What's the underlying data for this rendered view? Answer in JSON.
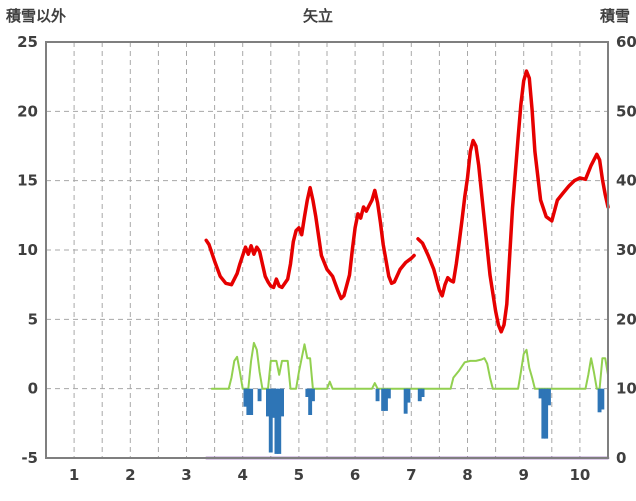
{
  "chart_data": {
    "type": "line",
    "title": "矢立",
    "left_axis_label": "積雪以外",
    "right_axis_label": "積雪",
    "xlabel": "",
    "xlim": [
      0.5,
      10.5
    ],
    "ylim_left": [
      -5,
      25
    ],
    "ylim_right": [
      0,
      60
    ],
    "x_ticks": [
      1,
      2,
      3,
      4,
      5,
      6,
      7,
      8,
      9,
      10
    ],
    "y_ticks_left": [
      25,
      20,
      15,
      10,
      5,
      0,
      -5
    ],
    "y_ticks_right": [
      60,
      50,
      40,
      30,
      20,
      10,
      0
    ],
    "grid": {
      "on": true,
      "x_step": 0.5,
      "y_step_left": 5,
      "line_style": "dashed",
      "color": "#a8a8a8"
    },
    "border_color": "#7f7f7f",
    "text_color": "#3f3f3f",
    "legend_position": "none",
    "series": [
      {
        "name": "series-red-thick-line",
        "type": "line",
        "axis": "left",
        "color": "#e60000",
        "width": 3.5,
        "points": [
          [
            3.35,
            10.7
          ],
          [
            3.4,
            10.4
          ],
          [
            3.5,
            9.2
          ],
          [
            3.6,
            8.1
          ],
          [
            3.7,
            7.6
          ],
          [
            3.8,
            7.5
          ],
          [
            3.9,
            8.3
          ],
          [
            3.95,
            9.0
          ],
          [
            4.0,
            9.6
          ],
          [
            4.05,
            10.2
          ],
          [
            4.1,
            9.7
          ],
          [
            4.15,
            10.3
          ],
          [
            4.2,
            9.7
          ],
          [
            4.25,
            10.2
          ],
          [
            4.3,
            9.9
          ],
          [
            4.35,
            9.0
          ],
          [
            4.4,
            8.1
          ],
          [
            4.45,
            7.7
          ],
          [
            4.5,
            7.4
          ],
          [
            4.55,
            7.3
          ],
          [
            4.6,
            7.9
          ],
          [
            4.65,
            7.4
          ],
          [
            4.7,
            7.3
          ],
          [
            4.8,
            7.9
          ],
          [
            4.85,
            9.0
          ],
          [
            4.9,
            10.6
          ],
          [
            4.95,
            11.4
          ],
          [
            5.0,
            11.6
          ],
          [
            5.05,
            11.1
          ],
          [
            5.1,
            12.4
          ],
          [
            5.15,
            13.6
          ],
          [
            5.2,
            14.5
          ],
          [
            5.25,
            13.6
          ],
          [
            5.3,
            12.4
          ],
          [
            5.35,
            11.0
          ],
          [
            5.4,
            9.6
          ],
          [
            5.5,
            8.6
          ],
          [
            5.6,
            8.1
          ],
          [
            5.7,
            7.0
          ],
          [
            5.75,
            6.5
          ],
          [
            5.8,
            6.7
          ],
          [
            5.9,
            8.2
          ],
          [
            5.95,
            10.0
          ],
          [
            6.0,
            11.6
          ],
          [
            6.05,
            12.6
          ],
          [
            6.1,
            12.3
          ],
          [
            6.15,
            13.1
          ],
          [
            6.2,
            12.8
          ],
          [
            6.25,
            13.2
          ],
          [
            6.3,
            13.6
          ],
          [
            6.35,
            14.3
          ],
          [
            6.4,
            13.4
          ],
          [
            6.45,
            12.0
          ],
          [
            6.5,
            10.4
          ],
          [
            6.6,
            8.1
          ],
          [
            6.65,
            7.6
          ],
          [
            6.7,
            7.7
          ],
          [
            6.8,
            8.6
          ],
          [
            6.9,
            9.1
          ],
          [
            7.0,
            9.4
          ],
          [
            7.05,
            9.6
          ],
          [
            7.1,
            null
          ],
          [
            7.12,
            10.8
          ],
          [
            7.2,
            10.5
          ],
          [
            7.3,
            9.6
          ],
          [
            7.4,
            8.6
          ],
          [
            7.5,
            7.1
          ],
          [
            7.55,
            6.7
          ],
          [
            7.6,
            7.5
          ],
          [
            7.65,
            8.0
          ],
          [
            7.7,
            7.8
          ],
          [
            7.75,
            7.7
          ],
          [
            7.8,
            9.0
          ],
          [
            7.85,
            10.5
          ],
          [
            7.9,
            12.1
          ],
          [
            7.95,
            13.8
          ],
          [
            8.0,
            15.2
          ],
          [
            8.05,
            17.1
          ],
          [
            8.1,
            17.9
          ],
          [
            8.15,
            17.5
          ],
          [
            8.2,
            16.1
          ],
          [
            8.3,
            12.1
          ],
          [
            8.4,
            8.2
          ],
          [
            8.5,
            5.6
          ],
          [
            8.55,
            4.6
          ],
          [
            8.6,
            4.1
          ],
          [
            8.65,
            4.6
          ],
          [
            8.7,
            6.1
          ],
          [
            8.8,
            13.0
          ],
          [
            8.9,
            18.1
          ],
          [
            8.95,
            20.5
          ],
          [
            9.0,
            22.2
          ],
          [
            9.05,
            22.9
          ],
          [
            9.1,
            22.4
          ],
          [
            9.15,
            20.1
          ],
          [
            9.2,
            17.1
          ],
          [
            9.3,
            13.6
          ],
          [
            9.4,
            12.4
          ],
          [
            9.5,
            12.1
          ],
          [
            9.6,
            13.6
          ],
          [
            9.7,
            14.1
          ],
          [
            9.8,
            14.6
          ],
          [
            9.9,
            15.0
          ],
          [
            10.0,
            15.2
          ],
          [
            10.1,
            15.1
          ],
          [
            10.2,
            16.1
          ],
          [
            10.3,
            16.9
          ],
          [
            10.35,
            16.5
          ],
          [
            10.4,
            15.1
          ],
          [
            10.45,
            14.0
          ],
          [
            10.5,
            13.1
          ]
        ]
      },
      {
        "name": "series-green-line",
        "type": "line",
        "axis": "left",
        "color": "#92d050",
        "width": 2,
        "points": [
          [
            3.45,
            0
          ],
          [
            3.75,
            0
          ],
          [
            3.8,
            0.8
          ],
          [
            3.85,
            2.0
          ],
          [
            3.9,
            2.3
          ],
          [
            3.95,
            1.2
          ],
          [
            4.0,
            0
          ],
          [
            4.1,
            0
          ],
          [
            4.15,
            2.0
          ],
          [
            4.2,
            3.3
          ],
          [
            4.25,
            2.8
          ],
          [
            4.3,
            1.2
          ],
          [
            4.35,
            0
          ],
          [
            4.45,
            0
          ],
          [
            4.5,
            2.0
          ],
          [
            4.6,
            2.0
          ],
          [
            4.65,
            1.0
          ],
          [
            4.7,
            2.0
          ],
          [
            4.8,
            2.0
          ],
          [
            4.85,
            0
          ],
          [
            4.95,
            0
          ],
          [
            5.0,
            1.2
          ],
          [
            5.05,
            2.2
          ],
          [
            5.1,
            3.2
          ],
          [
            5.15,
            2.2
          ],
          [
            5.2,
            2.2
          ],
          [
            5.25,
            0
          ],
          [
            5.5,
            0
          ],
          [
            5.55,
            0.5
          ],
          [
            5.6,
            0
          ],
          [
            6.3,
            0
          ],
          [
            6.35,
            0.4
          ],
          [
            6.4,
            0
          ],
          [
            7.7,
            0
          ],
          [
            7.75,
            0.8
          ],
          [
            7.85,
            1.3
          ],
          [
            7.95,
            1.9
          ],
          [
            8.05,
            2.0
          ],
          [
            8.15,
            2.0
          ],
          [
            8.25,
            2.1
          ],
          [
            8.3,
            2.2
          ],
          [
            8.35,
            1.8
          ],
          [
            8.4,
            0.8
          ],
          [
            8.45,
            0
          ],
          [
            8.9,
            0
          ],
          [
            8.95,
            1.2
          ],
          [
            9.0,
            2.5
          ],
          [
            9.05,
            2.8
          ],
          [
            9.1,
            1.5
          ],
          [
            9.15,
            0.8
          ],
          [
            9.2,
            0
          ],
          [
            10.1,
            0
          ],
          [
            10.15,
            1.0
          ],
          [
            10.2,
            2.2
          ],
          [
            10.25,
            1.2
          ],
          [
            10.3,
            0
          ],
          [
            10.35,
            0
          ],
          [
            10.4,
            2.2
          ],
          [
            10.45,
            2.2
          ],
          [
            10.5,
            1.0
          ]
        ]
      },
      {
        "name": "series-blue-bars",
        "type": "bar",
        "axis": "left",
        "color": "#2e75b6",
        "bar_width_units": 0.07,
        "points": [
          [
            4.05,
            -1.3
          ],
          [
            4.1,
            -1.9
          ],
          [
            4.15,
            -1.9
          ],
          [
            4.3,
            -0.9
          ],
          [
            4.45,
            -2.0
          ],
          [
            4.5,
            -4.6
          ],
          [
            4.55,
            -2.1
          ],
          [
            4.6,
            -4.7
          ],
          [
            4.65,
            -4.7
          ],
          [
            4.7,
            -2.0
          ],
          [
            5.15,
            -0.6
          ],
          [
            5.2,
            -1.9
          ],
          [
            5.25,
            -0.9
          ],
          [
            6.4,
            -0.9
          ],
          [
            6.5,
            -1.6
          ],
          [
            6.55,
            -1.6
          ],
          [
            6.6,
            -0.7
          ],
          [
            6.9,
            -1.8
          ],
          [
            6.95,
            -1.0
          ],
          [
            7.15,
            -0.9
          ],
          [
            7.2,
            -0.6
          ],
          [
            9.3,
            -0.7
          ],
          [
            9.35,
            -3.6
          ],
          [
            9.4,
            -3.6
          ],
          [
            9.45,
            -1.2
          ],
          [
            10.35,
            -1.7
          ],
          [
            10.4,
            -1.5
          ]
        ]
      },
      {
        "name": "series-purple-snow-depth-line",
        "type": "line",
        "axis": "right",
        "color": "#7030a0",
        "width": 2.5,
        "points": [
          [
            3.35,
            0
          ],
          [
            10.5,
            0
          ]
        ]
      }
    ]
  }
}
